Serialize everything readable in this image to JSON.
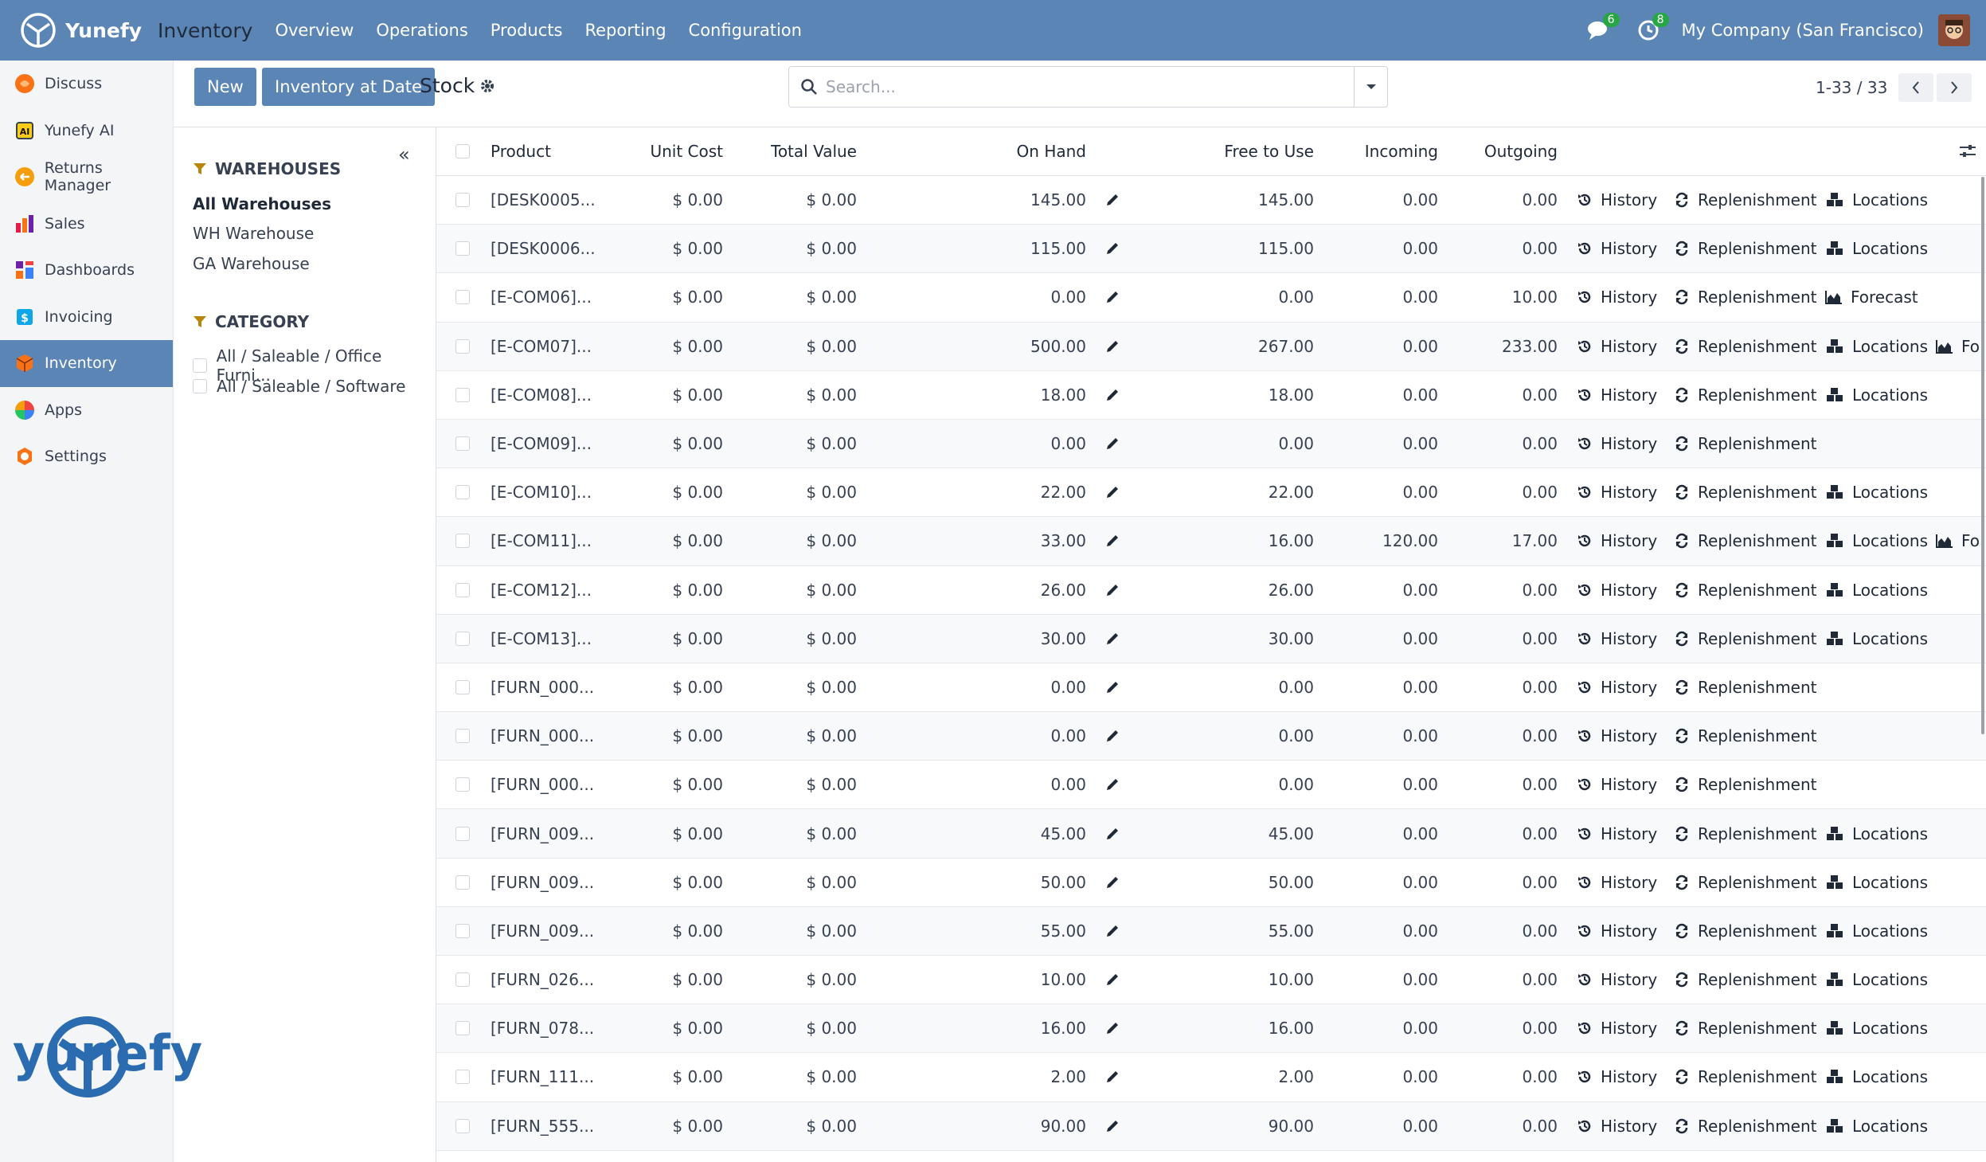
{
  "topbar": {
    "brand": "Yunefy",
    "app": "Inventory",
    "nav": [
      "Overview",
      "Operations",
      "Products",
      "Reporting",
      "Configuration"
    ],
    "messages_badge": "6",
    "activities_badge": "8",
    "company": "My Company (San Francisco)"
  },
  "sidebar": {
    "items": [
      {
        "label": "Discuss",
        "icon": "discuss-icon",
        "color": "#f97316"
      },
      {
        "label": "Yunefy AI",
        "icon": "ai-icon",
        "color": "#374151"
      },
      {
        "label": "Returns Manager",
        "icon": "returns-icon",
        "color": "#f59e0b"
      },
      {
        "label": "Sales",
        "icon": "sales-icon",
        "color": "#e11d48"
      },
      {
        "label": "Dashboards",
        "icon": "dashboards-icon",
        "color": "#6b21a8"
      },
      {
        "label": "Invoicing",
        "icon": "invoicing-icon",
        "color": "#0ea5e9"
      },
      {
        "label": "Inventory",
        "icon": "inventory-icon",
        "color": "#f97316"
      },
      {
        "label": "Apps",
        "icon": "apps-icon",
        "color": "#ef4444"
      },
      {
        "label": "Settings",
        "icon": "settings-icon",
        "color": "#f97316"
      }
    ],
    "footer_logo_text": "yunefy"
  },
  "controls": {
    "new_label": "New",
    "inventory_at_date_label": "Inventory at Date",
    "breadcrumb": "Stock",
    "search_placeholder": "Search...",
    "pager": "1-33 / 33"
  },
  "filters": {
    "warehouses_title": "WAREHOUSES",
    "warehouses": [
      "All Warehouses",
      "WH Warehouse",
      "GA Warehouse"
    ],
    "category_title": "CATEGORY",
    "categories": [
      "All / Saleable / Office Furni...",
      "All / Saleable / Software"
    ]
  },
  "table": {
    "headers": {
      "product": "Product",
      "unit_cost": "Unit Cost",
      "total_value": "Total Value",
      "on_hand": "On Hand",
      "free_to_use": "Free to Use",
      "incoming": "Incoming",
      "outgoing": "Outgoing"
    },
    "action_labels": {
      "history": "History",
      "replenishment": "Replenishment",
      "locations": "Locations",
      "forecast": "Forecast",
      "forecast_truncated": "Fo"
    },
    "rows": [
      {
        "product": "[DESK0005...",
        "unit_cost": "$ 0.00",
        "total_value": "$ 0.00",
        "on_hand": "145.00",
        "free_to_use": "145.00",
        "incoming": "0.00",
        "outgoing": "0.00",
        "locations": true,
        "forecast": "none"
      },
      {
        "product": "[DESK0006...",
        "unit_cost": "$ 0.00",
        "total_value": "$ 0.00",
        "on_hand": "115.00",
        "free_to_use": "115.00",
        "incoming": "0.00",
        "outgoing": "0.00",
        "locations": true,
        "forecast": "none"
      },
      {
        "product": "[E-COM06]...",
        "unit_cost": "$ 0.00",
        "total_value": "$ 0.00",
        "on_hand": "0.00",
        "free_to_use": "0.00",
        "incoming": "0.00",
        "outgoing": "10.00",
        "locations": false,
        "forecast": "full"
      },
      {
        "product": "[E-COM07]...",
        "unit_cost": "$ 0.00",
        "total_value": "$ 0.00",
        "on_hand": "500.00",
        "free_to_use": "267.00",
        "incoming": "0.00",
        "outgoing": "233.00",
        "locations": true,
        "forecast": "truncated"
      },
      {
        "product": "[E-COM08]...",
        "unit_cost": "$ 0.00",
        "total_value": "$ 0.00",
        "on_hand": "18.00",
        "free_to_use": "18.00",
        "incoming": "0.00",
        "outgoing": "0.00",
        "locations": true,
        "forecast": "none"
      },
      {
        "product": "[E-COM09]...",
        "unit_cost": "$ 0.00",
        "total_value": "$ 0.00",
        "on_hand": "0.00",
        "free_to_use": "0.00",
        "incoming": "0.00",
        "outgoing": "0.00",
        "locations": false,
        "forecast": "none"
      },
      {
        "product": "[E-COM10]...",
        "unit_cost": "$ 0.00",
        "total_value": "$ 0.00",
        "on_hand": "22.00",
        "free_to_use": "22.00",
        "incoming": "0.00",
        "outgoing": "0.00",
        "locations": true,
        "forecast": "none"
      },
      {
        "product": "[E-COM11]...",
        "unit_cost": "$ 0.00",
        "total_value": "$ 0.00",
        "on_hand": "33.00",
        "free_to_use": "16.00",
        "incoming": "120.00",
        "outgoing": "17.00",
        "locations": true,
        "forecast": "truncated"
      },
      {
        "product": "[E-COM12]...",
        "unit_cost": "$ 0.00",
        "total_value": "$ 0.00",
        "on_hand": "26.00",
        "free_to_use": "26.00",
        "incoming": "0.00",
        "outgoing": "0.00",
        "locations": true,
        "forecast": "none"
      },
      {
        "product": "[E-COM13]...",
        "unit_cost": "$ 0.00",
        "total_value": "$ 0.00",
        "on_hand": "30.00",
        "free_to_use": "30.00",
        "incoming": "0.00",
        "outgoing": "0.00",
        "locations": true,
        "forecast": "none"
      },
      {
        "product": "[FURN_000...",
        "unit_cost": "$ 0.00",
        "total_value": "$ 0.00",
        "on_hand": "0.00",
        "free_to_use": "0.00",
        "incoming": "0.00",
        "outgoing": "0.00",
        "locations": false,
        "forecast": "none"
      },
      {
        "product": "[FURN_000...",
        "unit_cost": "$ 0.00",
        "total_value": "$ 0.00",
        "on_hand": "0.00",
        "free_to_use": "0.00",
        "incoming": "0.00",
        "outgoing": "0.00",
        "locations": false,
        "forecast": "none"
      },
      {
        "product": "[FURN_000...",
        "unit_cost": "$ 0.00",
        "total_value": "$ 0.00",
        "on_hand": "0.00",
        "free_to_use": "0.00",
        "incoming": "0.00",
        "outgoing": "0.00",
        "locations": false,
        "forecast": "none"
      },
      {
        "product": "[FURN_009...",
        "unit_cost": "$ 0.00",
        "total_value": "$ 0.00",
        "on_hand": "45.00",
        "free_to_use": "45.00",
        "incoming": "0.00",
        "outgoing": "0.00",
        "locations": true,
        "forecast": "none"
      },
      {
        "product": "[FURN_009...",
        "unit_cost": "$ 0.00",
        "total_value": "$ 0.00",
        "on_hand": "50.00",
        "free_to_use": "50.00",
        "incoming": "0.00",
        "outgoing": "0.00",
        "locations": true,
        "forecast": "none"
      },
      {
        "product": "[FURN_009...",
        "unit_cost": "$ 0.00",
        "total_value": "$ 0.00",
        "on_hand": "55.00",
        "free_to_use": "55.00",
        "incoming": "0.00",
        "outgoing": "0.00",
        "locations": true,
        "forecast": "none"
      },
      {
        "product": "[FURN_026...",
        "unit_cost": "$ 0.00",
        "total_value": "$ 0.00",
        "on_hand": "10.00",
        "free_to_use": "10.00",
        "incoming": "0.00",
        "outgoing": "0.00",
        "locations": true,
        "forecast": "none"
      },
      {
        "product": "[FURN_078...",
        "unit_cost": "$ 0.00",
        "total_value": "$ 0.00",
        "on_hand": "16.00",
        "free_to_use": "16.00",
        "incoming": "0.00",
        "outgoing": "0.00",
        "locations": true,
        "forecast": "none"
      },
      {
        "product": "[FURN_111...",
        "unit_cost": "$ 0.00",
        "total_value": "$ 0.00",
        "on_hand": "2.00",
        "free_to_use": "2.00",
        "incoming": "0.00",
        "outgoing": "0.00",
        "locations": true,
        "forecast": "none"
      },
      {
        "product": "[FURN_555...",
        "unit_cost": "$ 0.00",
        "total_value": "$ 0.00",
        "on_hand": "90.00",
        "free_to_use": "90.00",
        "incoming": "0.00",
        "outgoing": "0.00",
        "locations": true,
        "forecast": "none"
      }
    ]
  },
  "colors": {
    "brand": "#5b85b5",
    "badge": "#27a744",
    "filter_icon": "#b8860b"
  }
}
